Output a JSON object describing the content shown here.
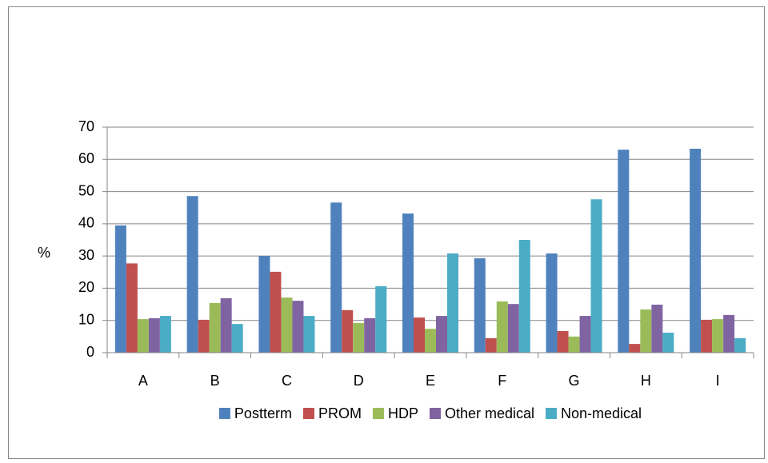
{
  "chart_data": {
    "type": "bar",
    "y_label": "%",
    "categories": [
      "A",
      "B",
      "C",
      "D",
      "E",
      "F",
      "G",
      "H",
      "I"
    ],
    "series": [
      {
        "name": "Postterm",
        "color": "#4f81bd",
        "values": [
          39.5,
          48.6,
          30,
          46.6,
          43.2,
          29.3,
          30.8,
          63,
          63.3
        ]
      },
      {
        "name": "PROM",
        "color": "#c0504d",
        "values": [
          27.7,
          10.2,
          25.1,
          13.2,
          10.9,
          4.5,
          6.7,
          2.7,
          10.2
        ]
      },
      {
        "name": "HDP",
        "color": "#9bbb59",
        "values": [
          10.4,
          15.4,
          17.1,
          9.2,
          7.4,
          15.9,
          5,
          13.4,
          10.4
        ]
      },
      {
        "name": "Other medical",
        "color": "#8064a2",
        "values": [
          10.7,
          16.9,
          16.1,
          10.7,
          11.4,
          15.1,
          11.4,
          14.9,
          11.7
        ]
      },
      {
        "name": "Non-medical",
        "color": "#4bacc6",
        "values": [
          11.4,
          8.9,
          11.4,
          20.6,
          30.8,
          35,
          47.6,
          6.2,
          4.5
        ]
      }
    ],
    "ylim": [
      0,
      70
    ],
    "yticks": [
      0,
      10,
      20,
      30,
      40,
      50,
      60,
      70
    ],
    "grid": true,
    "legend": "bottom"
  }
}
